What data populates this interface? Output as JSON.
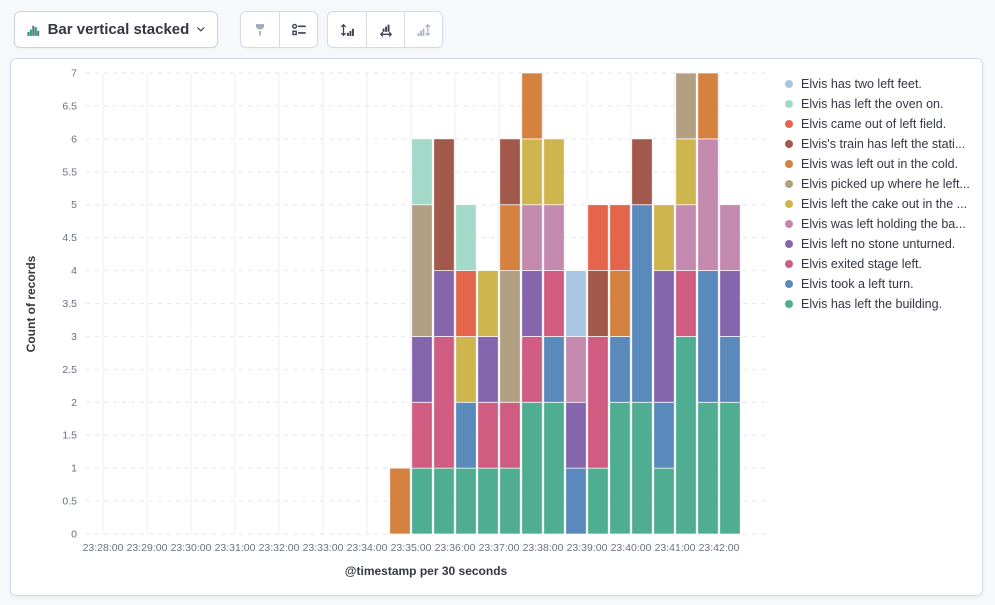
{
  "toolbar": {
    "chart_switcher": {
      "label": "Bar vertical stacked",
      "icon": "bar-vertical-stacked-icon"
    },
    "groups": [
      {
        "buttons": [
          {
            "icon": "brush-icon",
            "disabled": true
          },
          {
            "icon": "legend-settings-icon",
            "disabled": false
          }
        ]
      },
      {
        "buttons": [
          {
            "icon": "left-axis-icon",
            "disabled": false
          },
          {
            "icon": "bottom-axis-icon",
            "disabled": false
          },
          {
            "icon": "right-axis-icon",
            "disabled": true
          }
        ]
      }
    ]
  },
  "colors": {
    "page_background": "#f7f8fc",
    "panel_border": "#d3dae6",
    "icon": "#404553",
    "icon_disabled": "#9aa5b6"
  },
  "chart_data": {
    "type": "bar",
    "stacked": true,
    "title": "",
    "xlabel": "@timestamp per 30 seconds",
    "ylabel": "Count of records",
    "ylim": [
      0,
      7
    ],
    "y_tick_step": 0.5,
    "y_tick_labels": [
      "0",
      "0.5",
      "1",
      "1.5",
      "2",
      "2.5",
      "3",
      "3.5",
      "4",
      "4.5",
      "5",
      "5.5",
      "6",
      "6.5",
      "7"
    ],
    "x_axis_tick_labels": [
      "23:28:00",
      "23:29:00",
      "23:30:00",
      "23:31:00",
      "23:32:00",
      "23:33:00",
      "23:34:00",
      "23:35:00",
      "23:36:00",
      "23:37:00",
      "23:38:00",
      "23:39:00",
      "23:40:00",
      "23:41:00",
      "23:42:00"
    ],
    "x": [
      "23:34:30",
      "23:35:00",
      "23:35:30",
      "23:36:00",
      "23:36:30",
      "23:37:00",
      "23:37:30",
      "23:38:00",
      "23:38:30",
      "23:39:00",
      "23:39:30",
      "23:40:00",
      "23:40:30",
      "23:41:00",
      "23:41:30",
      "23:42:00"
    ],
    "bucket_seconds": 30,
    "legend_position": "right",
    "legend_order": "reverse-of-series",
    "grid": {
      "vertical": "solid",
      "horizontal": "dashed"
    },
    "series": [
      {
        "name": "Elvis has left the building.",
        "color": "#4FAE91",
        "values": [
          0,
          1,
          1,
          1,
          1,
          1,
          2,
          2,
          0,
          1,
          2,
          2,
          1,
          3,
          2,
          2
        ]
      },
      {
        "name": "Elvis took a left turn.",
        "color": "#5A89BB",
        "values": [
          0,
          0,
          0,
          1,
          0,
          0,
          0,
          1,
          1,
          0,
          1,
          3,
          1,
          0,
          2,
          1
        ]
      },
      {
        "name": "Elvis exited stage left.",
        "color": "#D05C82",
        "values": [
          0,
          1,
          2,
          0,
          1,
          1,
          1,
          1,
          0,
          2,
          0,
          0,
          0,
          1,
          0,
          0
        ]
      },
      {
        "name": "Elvis left no stone unturned.",
        "color": "#8566AC",
        "values": [
          0,
          1,
          1,
          0,
          1,
          0,
          1,
          0,
          1,
          0,
          0,
          0,
          2,
          0,
          0,
          1
        ]
      },
      {
        "name": "Elvis was left holding the ba...",
        "color": "#C489AE",
        "values": [
          0,
          0,
          0,
          0,
          0,
          0,
          1,
          1,
          1,
          0,
          0,
          0,
          0,
          1,
          2,
          1
        ]
      },
      {
        "name": "Elvis left the cake out in the ...",
        "color": "#CFB54E",
        "values": [
          0,
          0,
          0,
          1,
          1,
          0,
          1,
          1,
          0,
          0,
          0,
          0,
          1,
          1,
          0,
          0
        ]
      },
      {
        "name": "Elvis picked up where he left...",
        "color": "#B3A083",
        "values": [
          0,
          2,
          0,
          0,
          0,
          2,
          0,
          0,
          0,
          0,
          0,
          0,
          0,
          1,
          0,
          0
        ]
      },
      {
        "name": "Elvis was left out in the cold.",
        "color": "#D5813F",
        "values": [
          1,
          0,
          0,
          0,
          0,
          1,
          1,
          0,
          0,
          0,
          1,
          0,
          0,
          0,
          1,
          0
        ]
      },
      {
        "name": "Elvis's train has left the stati...",
        "color": "#A2594C",
        "values": [
          0,
          0,
          2,
          0,
          0,
          1,
          0,
          0,
          0,
          1,
          0,
          1,
          0,
          0,
          0,
          0
        ]
      },
      {
        "name": "Elvis came out of left field.",
        "color": "#E5654C",
        "values": [
          0,
          0,
          0,
          1,
          0,
          0,
          0,
          0,
          0,
          1,
          1,
          0,
          0,
          0,
          0,
          0
        ]
      },
      {
        "name": "Elvis has left the oven on.",
        "color": "#A2D9C8",
        "values": [
          0,
          1,
          0,
          1,
          0,
          0,
          0,
          0,
          0,
          0,
          0,
          0,
          0,
          0,
          0,
          0
        ]
      },
      {
        "name": "Elvis has two left feet.",
        "color": "#A8C6E2",
        "values": [
          0,
          0,
          0,
          0,
          0,
          0,
          0,
          0,
          1,
          0,
          0,
          0,
          0,
          0,
          0,
          0
        ]
      }
    ]
  }
}
